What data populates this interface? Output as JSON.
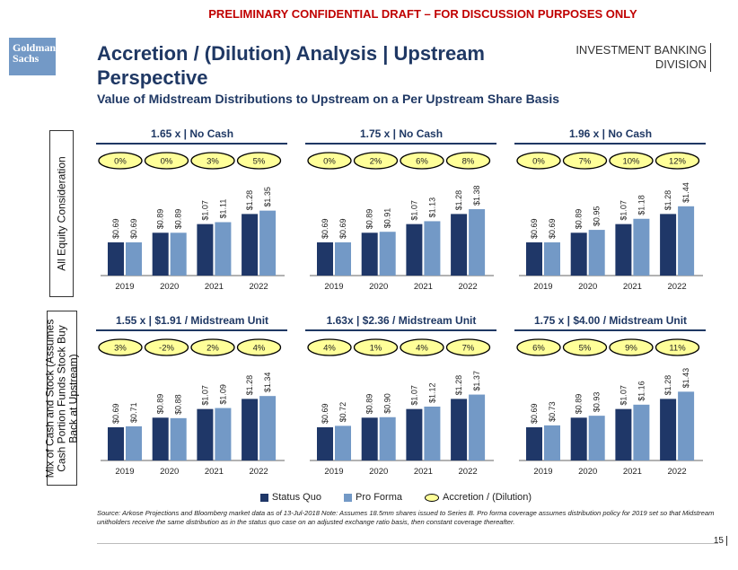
{
  "header": {
    "banner": "PRELIMINARY CONFIDENTIAL DRAFT – FOR DISCUSSION PURPOSES ONLY",
    "logo": "Goldman Sachs",
    "title": "Accretion / (Dilution) Analysis | Upstream Perspective",
    "subtitle": "Value of Midstream Distributions to Upstream on a Per Upstream Share Basis",
    "division_line1": "INVESTMENT BANKING",
    "division_line2": "DIVISION"
  },
  "row_labels": [
    "All Equity Consideration",
    "Mix of Cash and Stock (Assumes Cash Portion Funds Stock Buy Back at Upstream)"
  ],
  "legend": {
    "status_quo": "Status Quo",
    "pro_forma": "Pro Forma",
    "accretion": "Accretion / (Dilution)"
  },
  "colors": {
    "status_quo": "#1f3768",
    "pro_forma": "#7399c6",
    "oval": "#ffff99",
    "title": "#1f3864"
  },
  "source": "Source: Arkose Projections and Bloomberg market data as of 13-Jul-2018  Note: Assumes 18.5mm shares issued to Series B. Pro forma coverage assumes distribution policy  for 2019 set so that Midstream unitholders receive the same distribution as in the status quo case on an adjusted exchange ratio basis, then constant coverage thereafter.",
  "page_number": "15",
  "chart_data": [
    {
      "type": "bar",
      "title": "1.65 x | No Cash",
      "categories": [
        "2019",
        "2020",
        "2021",
        "2022"
      ],
      "series": [
        {
          "name": "Status Quo",
          "values": [
            0.69,
            0.89,
            1.07,
            1.28
          ]
        },
        {
          "name": "Pro Forma",
          "values": [
            0.69,
            0.89,
            1.11,
            1.35
          ]
        }
      ],
      "accretion": [
        "0%",
        "0%",
        "3%",
        "5%"
      ]
    },
    {
      "type": "bar",
      "title": "1.75 x | No Cash",
      "categories": [
        "2019",
        "2020",
        "2021",
        "2022"
      ],
      "series": [
        {
          "name": "Status Quo",
          "values": [
            0.69,
            0.89,
            1.07,
            1.28
          ]
        },
        {
          "name": "Pro Forma",
          "values": [
            0.69,
            0.91,
            1.13,
            1.38
          ]
        }
      ],
      "accretion": [
        "0%",
        "2%",
        "6%",
        "8%"
      ]
    },
    {
      "type": "bar",
      "title": "1.96 x | No Cash",
      "categories": [
        "2019",
        "2020",
        "2021",
        "2022"
      ],
      "series": [
        {
          "name": "Status Quo",
          "values": [
            0.69,
            0.89,
            1.07,
            1.28
          ]
        },
        {
          "name": "Pro Forma",
          "values": [
            0.69,
            0.95,
            1.18,
            1.44
          ]
        }
      ],
      "accretion": [
        "0%",
        "7%",
        "10%",
        "12%"
      ]
    },
    {
      "type": "bar",
      "title": "1.55 x | $1.91 / Midstream Unit",
      "categories": [
        "2019",
        "2020",
        "2021",
        "2022"
      ],
      "series": [
        {
          "name": "Status Quo",
          "values": [
            0.69,
            0.89,
            1.07,
            1.28
          ]
        },
        {
          "name": "Pro Forma",
          "values": [
            0.71,
            0.88,
            1.09,
            1.34
          ]
        }
      ],
      "accretion": [
        "3%",
        "-2%",
        "2%",
        "4%"
      ]
    },
    {
      "type": "bar",
      "title": "1.63x | $2.36 / Midstream Unit",
      "categories": [
        "2019",
        "2020",
        "2021",
        "2022"
      ],
      "series": [
        {
          "name": "Status Quo",
          "values": [
            0.69,
            0.89,
            1.07,
            1.28
          ]
        },
        {
          "name": "Pro Forma",
          "values": [
            0.72,
            0.9,
            1.12,
            1.37
          ]
        }
      ],
      "accretion": [
        "4%",
        "1%",
        "4%",
        "7%"
      ]
    },
    {
      "type": "bar",
      "title": "1.75 x | $4.00 / Midstream Unit",
      "categories": [
        "2019",
        "2020",
        "2021",
        "2022"
      ],
      "series": [
        {
          "name": "Status Quo",
          "values": [
            0.69,
            0.89,
            1.07,
            1.28
          ]
        },
        {
          "name": "Pro Forma",
          "values": [
            0.73,
            0.93,
            1.16,
            1.43
          ]
        }
      ],
      "accretion": [
        "6%",
        "5%",
        "9%",
        "11%"
      ]
    }
  ]
}
